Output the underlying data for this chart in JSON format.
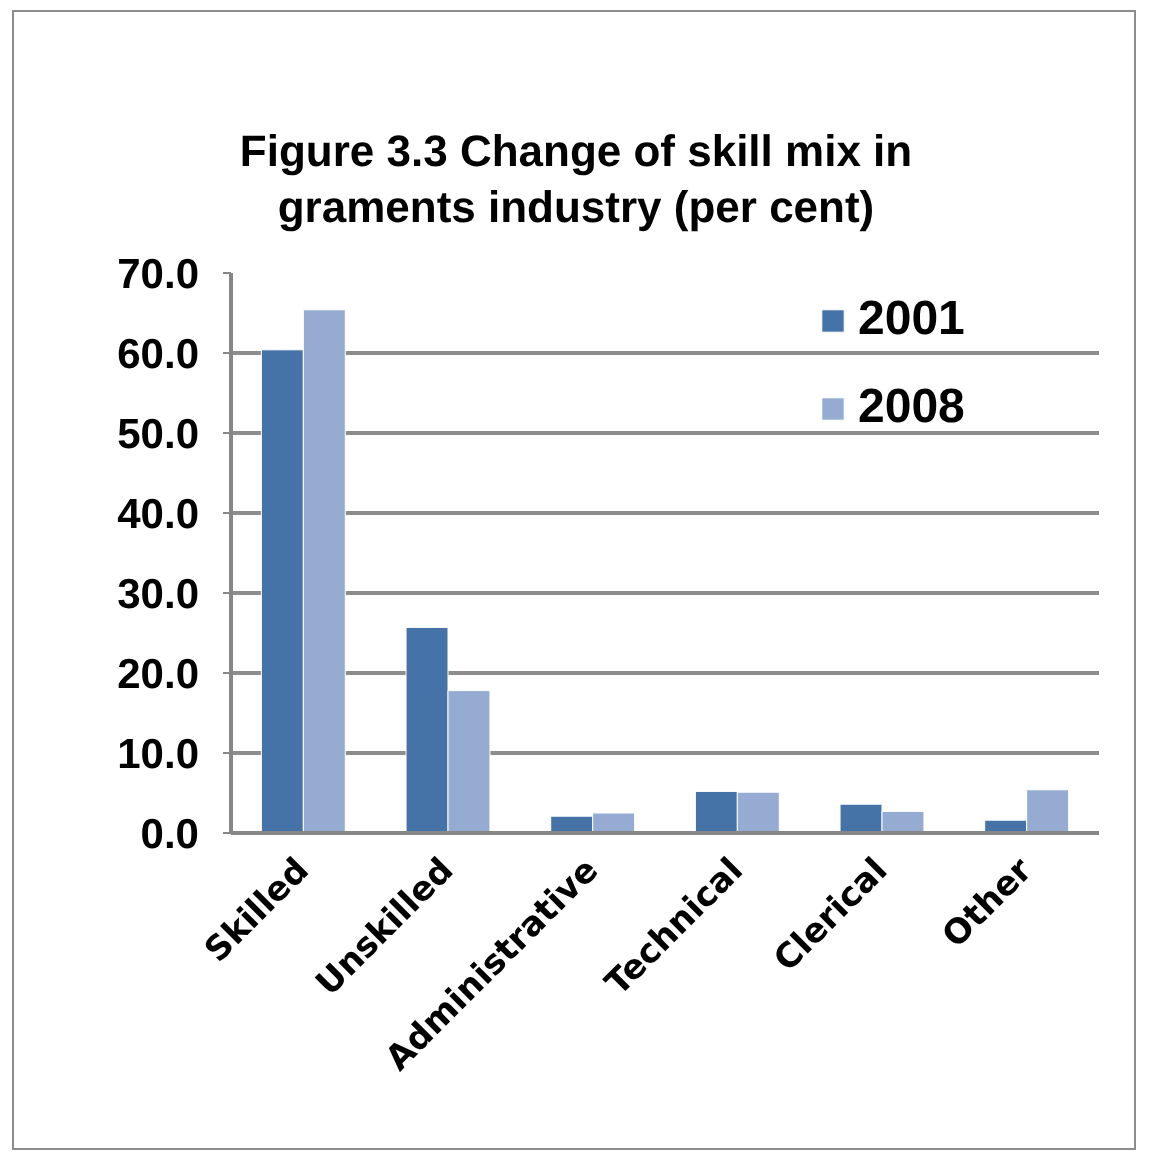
{
  "chart_data": {
    "type": "bar",
    "title": "Figure 3.3 Change of skill mix in graments industry (per cent)",
    "categories": [
      "Skilled",
      "Unskilled",
      "Administrative",
      "Technical",
      "Clerical",
      "Other"
    ],
    "series": [
      {
        "name": "2001",
        "color": "#4573a7",
        "values": [
          60.4,
          25.7,
          2.1,
          5.2,
          3.6,
          1.6
        ]
      },
      {
        "name": "2008",
        "color": "#95abd2",
        "values": [
          65.4,
          17.8,
          2.5,
          5.1,
          2.7,
          5.4
        ]
      }
    ],
    "ylim": [
      0,
      70
    ],
    "yticks": [
      {
        "value": 0,
        "label": "0.0"
      },
      {
        "value": 10,
        "label": "10.0"
      },
      {
        "value": 20,
        "label": "20.0"
      },
      {
        "value": 30,
        "label": "30.0"
      },
      {
        "value": 40,
        "label": "40.0"
      },
      {
        "value": 50,
        "label": "50.0"
      },
      {
        "value": 60,
        "label": "60.0"
      },
      {
        "value": 70,
        "label": "70.0"
      }
    ],
    "grid": "y",
    "legend": "top right"
  }
}
